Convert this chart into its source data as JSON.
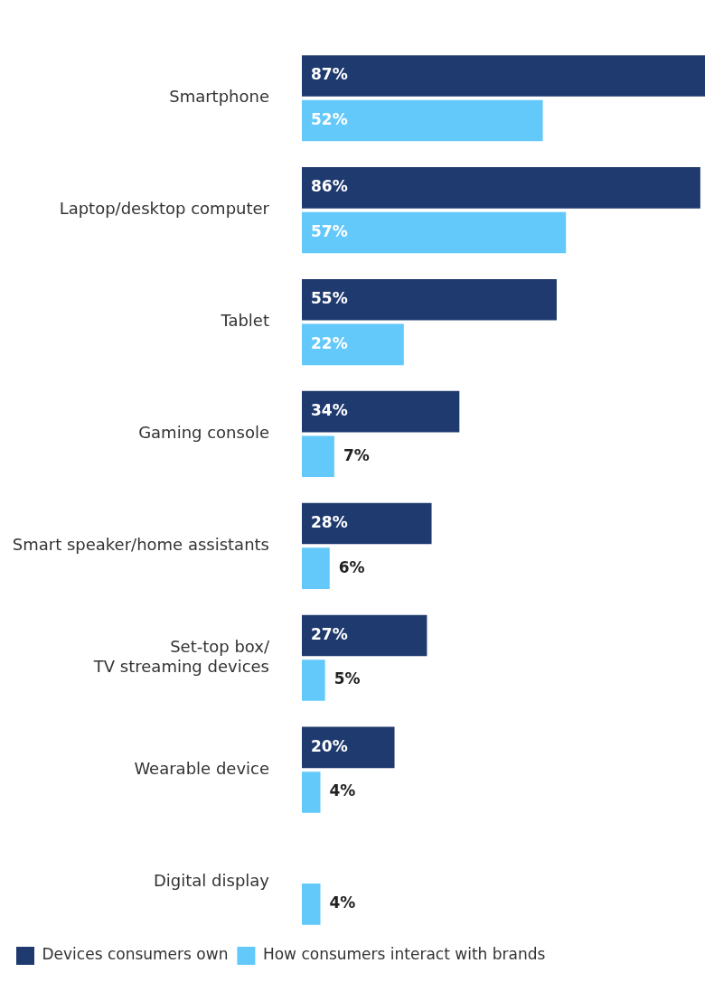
{
  "chart_data": {
    "type": "bar",
    "orientation": "horizontal",
    "categories": [
      "Smartphone",
      "Laptop/desktop computer",
      "Tablet",
      "Gaming console",
      "Smart speaker/home assistants",
      "Set-top box/ TV streaming devices",
      "Wearable device",
      "Digital display"
    ],
    "series": [
      {
        "name": "Devices consumers own",
        "color": "#1f3a6e",
        "values": [
          87,
          86,
          55,
          34,
          28,
          27,
          20,
          null
        ],
        "value_labels": [
          "87%",
          "86%",
          "55%",
          "34%",
          "28%",
          "27%",
          "20%",
          null
        ]
      },
      {
        "name": "How consumers interact with brands",
        "color": "#63c8fa",
        "values": [
          52,
          57,
          22,
          7,
          6,
          5,
          4,
          4
        ],
        "value_labels": [
          "52%",
          "57%",
          "22%",
          "7%",
          "6%",
          "5%",
          "4%",
          "4%"
        ]
      }
    ],
    "xlim": [
      0,
      87
    ],
    "tick_labels": "y",
    "legend": "bottom"
  }
}
